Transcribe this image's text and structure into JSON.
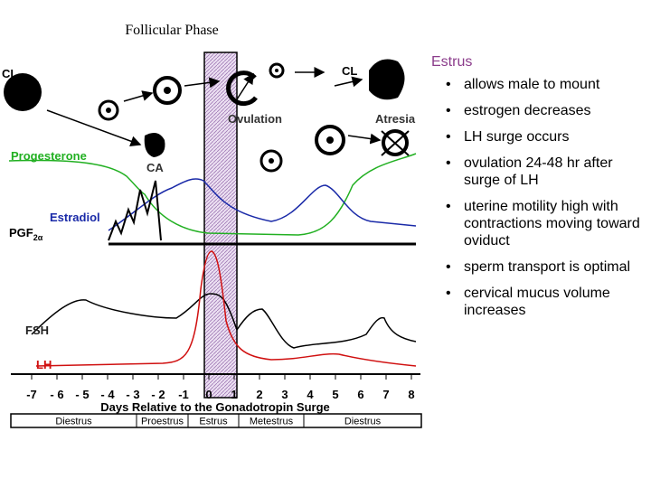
{
  "header": {
    "title": "Follicular Phase"
  },
  "diagram": {
    "labels": {
      "cl_left": "CL",
      "cl_right": "CL",
      "ovulation": "Ovulation",
      "atresia": "Atresia",
      "progesterone": "Progesterone",
      "ca": "CA",
      "estradiol": "Estradiol",
      "pgf": "PGF",
      "pgf_sub": "2α",
      "fsh": "FSH",
      "lh": "LH"
    },
    "days": [
      "-7",
      "- 6",
      "- 5",
      "- 4",
      "- 3",
      "- 2",
      "-1",
      "0",
      "1",
      "2",
      "3",
      "4",
      "5",
      "6",
      "7",
      "8"
    ],
    "axis_title": "Days Relative to the Gonadotropin Surge",
    "phases": [
      "Diestrus",
      "Proestrus",
      "Estrus",
      "Metestrus",
      "Diestrus"
    ]
  },
  "notes": {
    "heading": "Estrus",
    "bullets": [
      "allows male to mount",
      "estrogen decreases",
      "LH surge occurs",
      "ovulation 24-48 hr after surge of LH",
      "uterine motility high with contractions moving toward oviduct",
      "sperm transport is optimal",
      "cervical mucus volume increases"
    ]
  }
}
